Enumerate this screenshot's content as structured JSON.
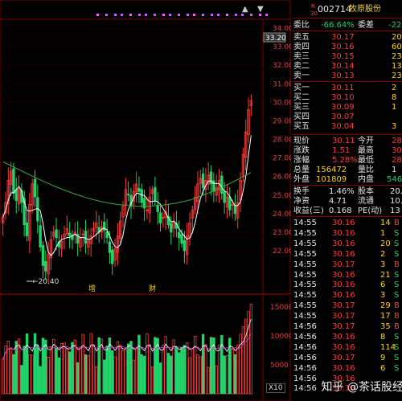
{
  "header": {
    "stock_code": "002714",
    "stock_name": "牧原股份",
    "badge_top": "R",
    "badge_bottom": "30"
  },
  "price_axis": [
    "34.00",
    "33.00",
    "32.00",
    "31.00",
    "30.00",
    "29.00",
    "28.00",
    "27.00",
    "26.00",
    "25.00",
    "24.00",
    "23.00",
    "22.00"
  ],
  "price_marker": "33.20",
  "volume_axis": [
    "15000",
    "10000",
    "5000"
  ],
  "low_label": "20.40",
  "annotations": {
    "a1": "增",
    "a2": "财"
  },
  "x10_label": "X10",
  "order_book": {
    "weibi_label": "委比",
    "weibi_value": "-66.64%",
    "weicha_label": "委差",
    "weicha_value": "-22",
    "asks": [
      {
        "label": "卖五",
        "price": "30.17",
        "vol": "20"
      },
      {
        "label": "卖四",
        "price": "30.16",
        "vol": "60"
      },
      {
        "label": "卖三",
        "price": "30.15",
        "vol": "23"
      },
      {
        "label": "卖二",
        "price": "30.14",
        "vol": "13"
      },
      {
        "label": "卖一",
        "price": "30.13",
        "vol": "23"
      }
    ],
    "bids": [
      {
        "label": "买一",
        "price": "30.11",
        "vol": "2"
      },
      {
        "label": "买二",
        "price": "30.10",
        "vol": "8"
      },
      {
        "label": "买三",
        "price": "30.09",
        "vol": "1"
      },
      {
        "label": "买四",
        "price": "30.07",
        "vol": ""
      },
      {
        "label": "买五",
        "price": "30.04",
        "vol": "3"
      }
    ]
  },
  "quote": [
    {
      "l1": "现价",
      "v1": "30.11",
      "l2": "今开",
      "v2": "28"
    },
    {
      "l1": "涨跌",
      "v1": "1.51",
      "l2": "最高",
      "v2": "30"
    },
    {
      "l1": "涨幅",
      "v1": "5.28%",
      "l2": "最低",
      "v2": "28"
    },
    {
      "l1": "总量",
      "v1": "156472",
      "l2": "量比",
      "v2": "1"
    },
    {
      "l1": "外盘",
      "v1": "101809",
      "l2": "内盘",
      "v2": "546"
    }
  ],
  "fundamentals": [
    {
      "l1": "换手",
      "v1": "1.46%",
      "l2": "股本",
      "v2": "20."
    },
    {
      "l1": "净资",
      "v1": "4.71",
      "l2": "流通",
      "v2": "10."
    },
    {
      "l1": "收益(三)",
      "v1": "0.168",
      "l2": "PE(动)",
      "v2": "13"
    }
  ],
  "ticks": [
    {
      "t": "14:55",
      "p": "30.16",
      "v": "14",
      "d": "B"
    },
    {
      "t": "14:55",
      "p": "30.16",
      "v": "1",
      "d": "S"
    },
    {
      "t": "14:55",
      "p": "30.16",
      "v": "20",
      "d": "S"
    },
    {
      "t": "14:55",
      "p": "30.16",
      "v": "2",
      "d": "S"
    },
    {
      "t": "14:55",
      "p": "30.17",
      "v": "3",
      "d": "B"
    },
    {
      "t": "14:55",
      "p": "30.16",
      "v": "21",
      "d": "S"
    },
    {
      "t": "14:55",
      "p": "30.16",
      "v": "6",
      "d": "S"
    },
    {
      "t": "14:55",
      "p": "30.16",
      "v": "3",
      "d": "S"
    },
    {
      "t": "14:55",
      "p": "30.17",
      "v": "29",
      "d": "B"
    },
    {
      "t": "14:55",
      "p": "30.17",
      "v": "17",
      "d": "B"
    },
    {
      "t": "14:56",
      "p": "30.17",
      "v": "35",
      "d": "B"
    },
    {
      "t": "14:56",
      "p": "30.16",
      "v": "8",
      "d": "S"
    },
    {
      "t": "14:56",
      "p": "30.16",
      "v": "114",
      "d": "S"
    },
    {
      "t": "14:56",
      "p": "30.17",
      "v": "9",
      "d": "S"
    },
    {
      "t": "14:56",
      "p": "30.16",
      "v": "6",
      "d": "S"
    },
    {
      "t": "14:56",
      "p": "30.16",
      "v": "",
      "d": ""
    },
    {
      "t": "14:56",
      "p": "30.16",
      "v": "",
      "d": ""
    }
  ],
  "watermark": "知乎 @茶话股经",
  "colors": {
    "up": "#ff3b3b",
    "down": "#22d36a",
    "ma_short": "#ffffff",
    "ma_long": "#3aa83a",
    "grid": "#7a0000"
  }
}
